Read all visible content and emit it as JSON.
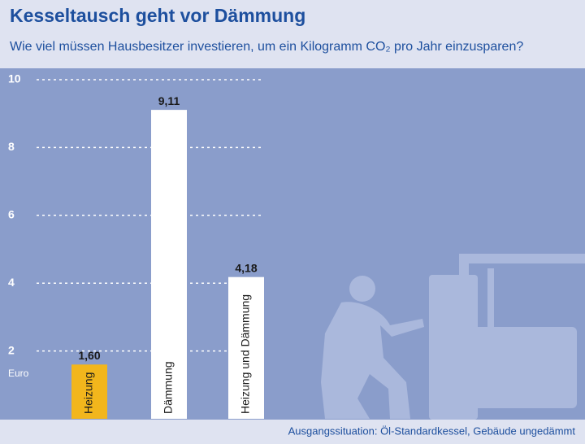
{
  "chart_data": {
    "type": "bar",
    "title": "Kesseltausch geht vor Dämmung",
    "subtitle": "Wie viel müssen Hausbesitzer investieren, um ein Kilogramm CO₂ pro Jahr einzusparen?",
    "y_axis_label": "Euro",
    "categories": [
      "Heizung",
      "Dämmung",
      "Heizung und Dämmung"
    ],
    "values": [
      1.6,
      9.11,
      4.18
    ],
    "value_labels": [
      "1,60",
      "9,11",
      "4,18"
    ],
    "colors": [
      "#f2b61c",
      "#ffffff",
      "#ffffff"
    ],
    "ylim": [
      0,
      10
    ],
    "yticks": [
      2,
      4,
      6,
      8,
      10
    ],
    "grid": true,
    "note": "Ausgangssituation: Öl-Standardkessel, Gebäude ungedämmt"
  }
}
